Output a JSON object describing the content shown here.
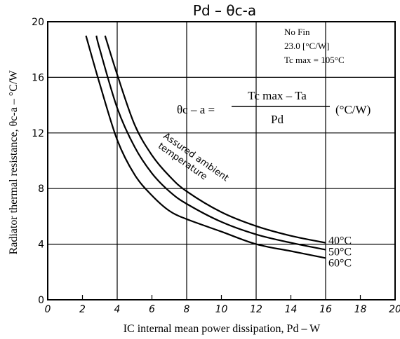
{
  "chart_data": {
    "type": "line",
    "title": "Pd  – θc-a",
    "xlabel": "IC internal mean power dissipation, Pd – W",
    "ylabel": "Radiator thermal resistance, θc-a – °C/W",
    "xlim": [
      0,
      20
    ],
    "ylim": [
      0,
      20
    ],
    "x_ticks": [
      0,
      2,
      4,
      6,
      8,
      10,
      12,
      14,
      16,
      18,
      20
    ],
    "y_ticks": [
      0,
      4,
      8,
      12,
      16,
      20
    ],
    "grid": true,
    "info_lines": [
      "No Fin",
      "23.0 [°C/W]",
      "Tc max = 105°C"
    ],
    "formula": {
      "lhs": "θc – a =",
      "numerator": "Tc max – Ta",
      "denominator": "Pd",
      "unit": "(°C/W)"
    },
    "annotation": [
      "Assured ambient",
      "temperature"
    ],
    "series": [
      {
        "name": "40°C",
        "x": [
          3.3,
          4,
          5,
          6,
          7,
          8,
          10,
          12,
          14,
          16
        ],
        "y": [
          19.0,
          16.2,
          12.6,
          10.4,
          8.9,
          7.8,
          6.3,
          5.3,
          4.6,
          4.1
        ]
      },
      {
        "name": "50°C",
        "x": [
          2.8,
          3,
          4,
          5,
          6,
          7,
          8,
          10,
          12,
          14,
          16
        ],
        "y": [
          19.0,
          18.0,
          13.8,
          11.0,
          9.1,
          7.8,
          6.9,
          5.6,
          4.7,
          4.1,
          3.6
        ]
      },
      {
        "name": "60°C",
        "x": [
          2.2,
          3,
          4,
          5,
          6,
          7,
          8,
          10,
          12,
          14,
          16
        ],
        "y": [
          19.0,
          15.5,
          11.5,
          9.0,
          7.5,
          6.4,
          5.8,
          4.9,
          4.0,
          3.5,
          3.0
        ]
      }
    ]
  }
}
